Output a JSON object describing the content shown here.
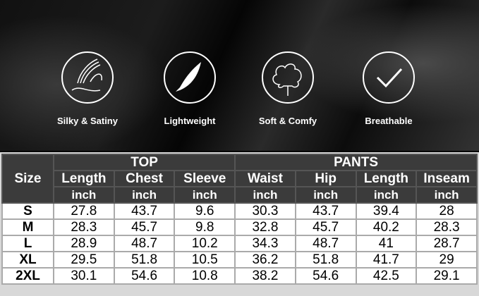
{
  "features": [
    {
      "icon": "silk-hand-icon",
      "label": "Silky & Satiny"
    },
    {
      "icon": "feather-icon",
      "label": "Lightweight"
    },
    {
      "icon": "cotton-flower-icon",
      "label": "Soft & Comfy"
    },
    {
      "icon": "checkmark-icon",
      "label": "Breathable"
    }
  ],
  "table": {
    "size_header": "Size",
    "groups": [
      "TOP",
      "PANTS"
    ],
    "columns": [
      "Length",
      "Chest",
      "Sleeve",
      "Waist",
      "Hip",
      "Length",
      "Inseam"
    ],
    "unit": "inch",
    "rows": [
      {
        "size": "S",
        "values": [
          "27.8",
          "43.7",
          "9.6",
          "30.3",
          "43.7",
          "39.4",
          "28"
        ]
      },
      {
        "size": "M",
        "values": [
          "28.3",
          "45.7",
          "9.8",
          "32.8",
          "45.7",
          "40.2",
          "28.3"
        ]
      },
      {
        "size": "L",
        "values": [
          "28.9",
          "48.7",
          "10.2",
          "34.3",
          "48.7",
          "41",
          "28.7"
        ]
      },
      {
        "size": "XL",
        "values": [
          "29.5",
          "51.8",
          "10.5",
          "36.2",
          "51.8",
          "41.7",
          "29"
        ]
      },
      {
        "size": "2XL",
        "values": [
          "30.1",
          "54.6",
          "10.8",
          "38.2",
          "54.6",
          "42.5",
          "29.1"
        ]
      }
    ]
  },
  "colors": {
    "header_bg": "#3b3b3b",
    "header_text": "#ffffff"
  }
}
